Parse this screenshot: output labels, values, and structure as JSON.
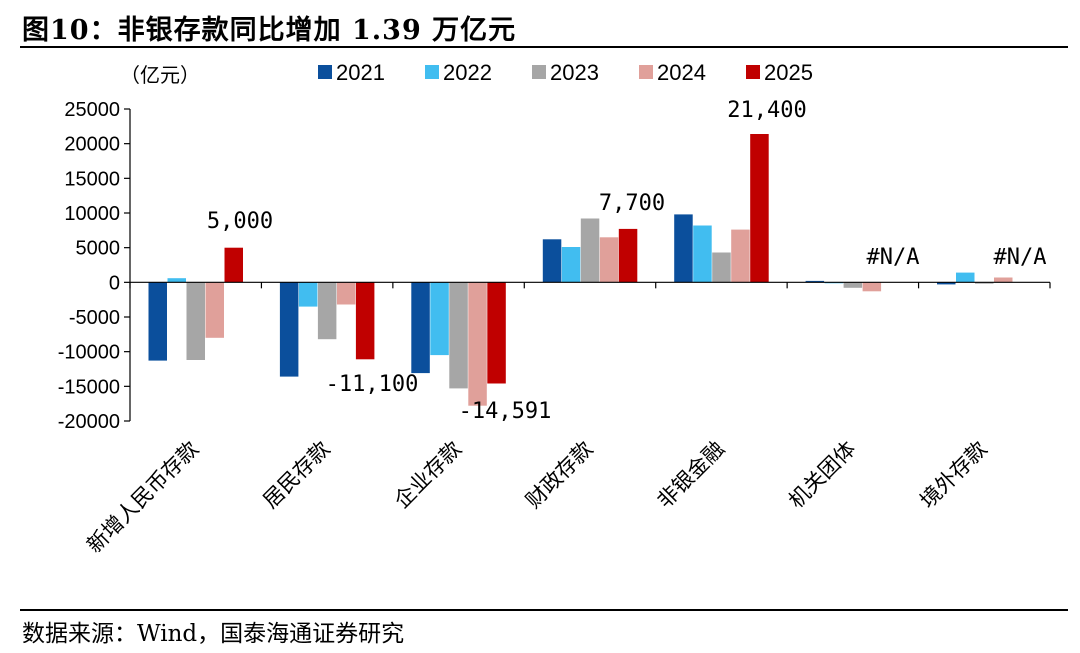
{
  "title": "图10：非银存款同比增加 1.39 万亿元",
  "source": {
    "label": "数据来源：",
    "text": "Wind，国泰海通证券研究"
  },
  "chart_data": {
    "type": "bar",
    "unit_label": "（亿元）",
    "categories": [
      "新增人民币存款",
      "居民存款",
      "企业存款",
      "财政存款",
      "非银金融",
      "机关团体",
      "境外存款"
    ],
    "series": [
      {
        "name": "2021",
        "color": "#0B4F9C",
        "values": [
          -11300,
          -13600,
          -13100,
          6200,
          9800,
          200,
          -300
        ]
      },
      {
        "name": "2022",
        "color": "#41BDF0",
        "values": [
          600,
          -3500,
          -10500,
          5100,
          8200,
          0,
          1400
        ]
      },
      {
        "name": "2023",
        "color": "#A6A6A6",
        "values": [
          -11200,
          -8200,
          -15300,
          9200,
          4300,
          -800,
          -200
        ]
      },
      {
        "name": "2024",
        "color": "#E0A09A",
        "values": [
          -8000,
          -3200,
          -17800,
          6500,
          7600,
          -1300,
          700
        ]
      },
      {
        "name": "2025",
        "color": "#C00000",
        "values": [
          5000,
          -11100,
          -14591,
          7700,
          21400,
          null,
          null
        ]
      }
    ],
    "ylim": [
      -20000,
      25000
    ],
    "yticks": [
      25000,
      20000,
      15000,
      10000,
      5000,
      0,
      -5000,
      -10000,
      -15000,
      -20000
    ],
    "annotations": [
      "5,000",
      "-11,100",
      "-14,591",
      "7,700",
      "21,400",
      "#N/A",
      "#N/A"
    ]
  }
}
